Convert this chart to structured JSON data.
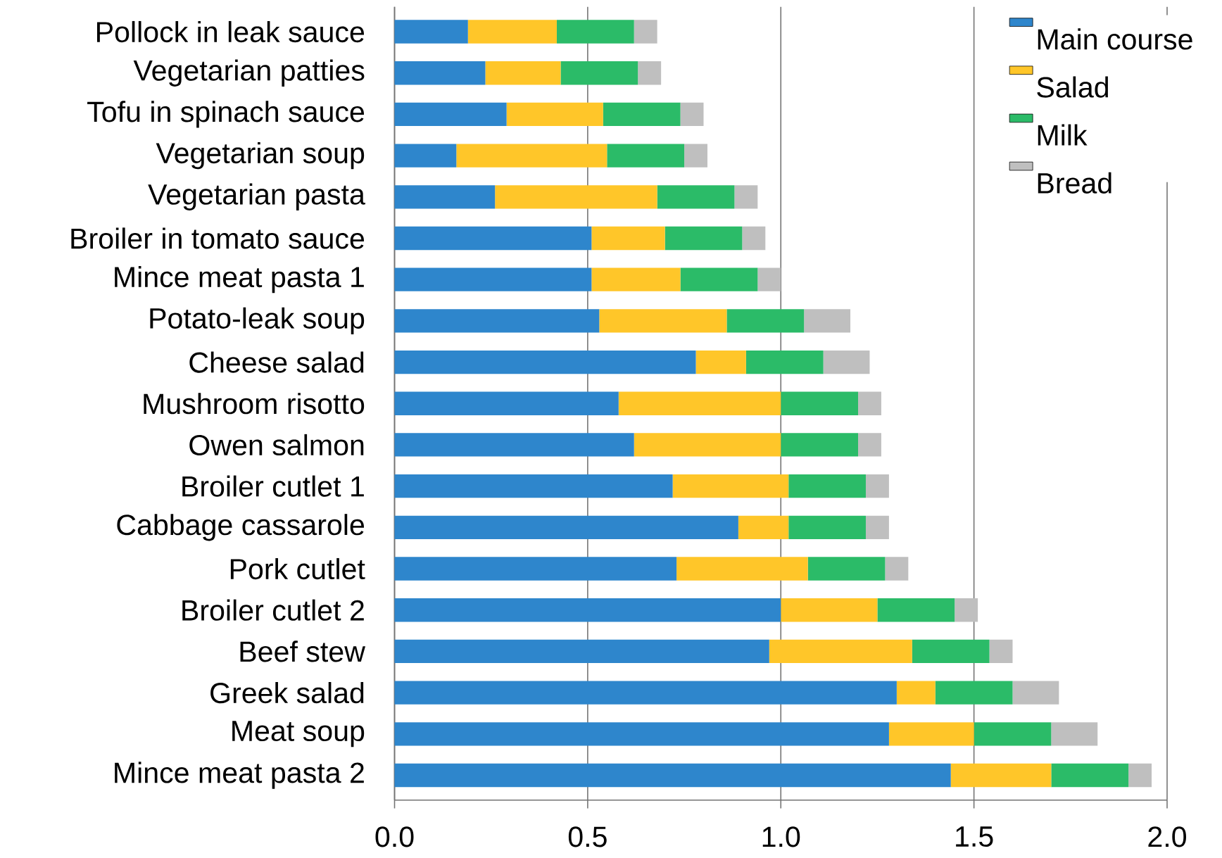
{
  "chart_data": {
    "type": "bar",
    "orientation": "horizontal",
    "stacked": true,
    "categories": [
      "Pollock in leak sauce",
      "Vegetarian patties",
      "Tofu in spinach sauce",
      "Vegetarian soup",
      "Vegetarian pasta",
      "Broiler in tomato sauce",
      "Mince meat pasta 1",
      "Potato-leak soup",
      "Cheese salad",
      "Mushroom risotto",
      "Owen salmon",
      "Broiler cutlet 1",
      "Cabbage cassarole",
      "Pork cutlet",
      "Broiler cutlet 2",
      "Beef stew",
      "Greek salad",
      "Meat soup",
      "Mince meat pasta 2"
    ],
    "series": [
      {
        "name": "Main course",
        "color": "#2e86cc",
        "values": [
          0.19,
          0.235,
          0.29,
          0.16,
          0.26,
          0.51,
          0.51,
          0.53,
          0.78,
          0.58,
          0.62,
          0.72,
          0.89,
          0.73,
          1.0,
          0.97,
          1.3,
          1.28,
          1.44
        ]
      },
      {
        "name": "Salad",
        "color": "#ffc629",
        "values": [
          0.23,
          0.195,
          0.25,
          0.39,
          0.42,
          0.19,
          0.23,
          0.33,
          0.13,
          0.42,
          0.38,
          0.3,
          0.13,
          0.34,
          0.25,
          0.37,
          0.1,
          0.22,
          0.26
        ]
      },
      {
        "name": "Milk",
        "color": "#2bbb68",
        "values": [
          0.2,
          0.2,
          0.2,
          0.2,
          0.2,
          0.2,
          0.2,
          0.2,
          0.2,
          0.2,
          0.2,
          0.2,
          0.2,
          0.2,
          0.2,
          0.2,
          0.2,
          0.2,
          0.2
        ]
      },
      {
        "name": "Bread",
        "color": "#bfbfbf",
        "values": [
          0.06,
          0.06,
          0.06,
          0.06,
          0.06,
          0.06,
          0.06,
          0.12,
          0.12,
          0.06,
          0.06,
          0.06,
          0.06,
          0.06,
          0.06,
          0.06,
          0.12,
          0.12,
          0.06
        ]
      }
    ],
    "xlim": [
      0,
      2.0
    ],
    "xticks": [
      {
        "value": 0,
        "label": "0.0"
      },
      {
        "value": 0.5,
        "label": "0.5"
      },
      {
        "value": 1.0,
        "label": "1.0"
      },
      {
        "value": 1.5,
        "label": "1.5"
      },
      {
        "value": 2.0,
        "label": "2.0"
      }
    ],
    "grid": "x",
    "legend": "top right"
  }
}
